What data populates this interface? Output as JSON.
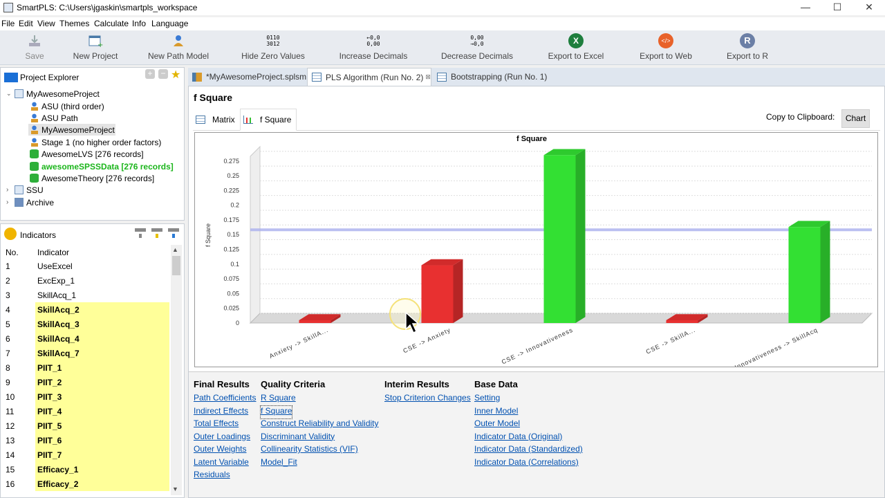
{
  "window": {
    "title": "SmartPLS: C:\\Users\\jgaskin\\smartpls_workspace",
    "minimize": "—",
    "maximize": "☐",
    "close": "✕"
  },
  "menu": [
    "File",
    "Edit",
    "View",
    "Themes",
    "Calculate",
    "Info",
    "Language"
  ],
  "toolbar": {
    "save": "Save",
    "new_project": "New Project",
    "new_path_model": "New Path Model",
    "hide_zero": "Hide Zero Values",
    "hide_zero_icon_top": "0110",
    "hide_zero_icon_bottom": "3012",
    "increase_decimals": "Increase Decimals",
    "increase_icon_top": "←0,0",
    "increase_icon_bottom": "0,00",
    "decrease_decimals": "Decrease Decimals",
    "decrease_icon_top": "0,00",
    "decrease_icon_bottom": "→0,0",
    "export_excel": "Export to Excel",
    "export_web": "Export to Web",
    "export_r": "Export to R",
    "excel_glyph": "X",
    "web_glyph": "</>",
    "r_glyph": "R"
  },
  "project_explorer": {
    "title": "Project Explorer",
    "items": [
      {
        "label": "MyAwesomeProject",
        "type": "project"
      },
      {
        "label": "ASU (third order)",
        "type": "model"
      },
      {
        "label": "ASU Path",
        "type": "model"
      },
      {
        "label": "MyAwesomeProject",
        "type": "model"
      },
      {
        "label": "Stage 1 (no higher order factors)",
        "type": "model"
      },
      {
        "label": "AwesomeLVS [276 records]",
        "type": "data"
      },
      {
        "label": "awesomeSPSSData [276 records]",
        "type": "data"
      },
      {
        "label": "AwesomeTheory [276 records]",
        "type": "data"
      },
      {
        "label": "SSU",
        "type": "project"
      },
      {
        "label": "Archive",
        "type": "archive"
      }
    ]
  },
  "indicators": {
    "title": "Indicators",
    "col_no": "No.",
    "col_indicator": "Indicator",
    "rows": [
      {
        "no": "1",
        "name": "UseExcel"
      },
      {
        "no": "2",
        "name": "ExcExp_1"
      },
      {
        "no": "3",
        "name": "SkillAcq_1"
      },
      {
        "no": "4",
        "name": "SkillAcq_2"
      },
      {
        "no": "5",
        "name": "SkillAcq_3"
      },
      {
        "no": "6",
        "name": "SkillAcq_4"
      },
      {
        "no": "7",
        "name": "SkillAcq_7"
      },
      {
        "no": "8",
        "name": "PIIT_1"
      },
      {
        "no": "9",
        "name": "PIIT_2"
      },
      {
        "no": "10",
        "name": "PIIT_3"
      },
      {
        "no": "11",
        "name": "PIIT_4"
      },
      {
        "no": "12",
        "name": "PIIT_5"
      },
      {
        "no": "13",
        "name": "PIIT_6"
      },
      {
        "no": "14",
        "name": "PIIT_7"
      },
      {
        "no": "15",
        "name": "Efficacy_1"
      },
      {
        "no": "16",
        "name": "Efficacy_2"
      }
    ]
  },
  "tabs": [
    {
      "label": "*MyAwesomeProject.splsm"
    },
    {
      "label": "PLS Algorithm (Run No. 2)",
      "close": "⊠"
    },
    {
      "label": "Bootstrapping (Run No. 1)"
    }
  ],
  "result": {
    "title": "f Square",
    "subtabs": [
      "Matrix",
      "f Square"
    ],
    "copy_label": "Copy to Clipboard:",
    "chart_button": "Chart"
  },
  "chart_data": {
    "type": "bar",
    "title": "f Square",
    "ylabel": "f Square",
    "xlabel": "",
    "categories": [
      "Anxiety -> SkillAcq",
      "CSE -> Anxiety",
      "CSE -> Innovativeness",
      "CSE -> SkillAcq",
      "Innovativeness -> SkillAcq"
    ],
    "category_labels": [
      "Anxiety -> SkillA...",
      "CSE -> Anxiety",
      "CSE -> Innovativeness",
      "CSE -> SkillA...",
      "Innovativeness -> SkillAcq"
    ],
    "values": [
      0.004,
      0.098,
      0.285,
      0.003,
      0.163
    ],
    "colors": [
      "#e83030",
      "#e83030",
      "#33e033",
      "#e83030",
      "#33e033"
    ],
    "reference_line": 0.15,
    "ylim": [
      0,
      0.29
    ],
    "yticks": [
      0,
      0.025,
      0.05,
      0.075,
      0.1,
      0.125,
      0.15,
      0.175,
      0.2,
      0.225,
      0.25,
      0.275
    ],
    "ytick_labels": [
      "0",
      "0.025",
      "0.05",
      "0.075",
      "0.1",
      "0.125",
      "0.15",
      "0.175",
      "0.2",
      "0.225",
      "0.25",
      "0.275"
    ],
    "grid": true,
    "legend": "none"
  },
  "links": {
    "final": {
      "title": "Final Results",
      "items": [
        "Path Coefficients",
        "Indirect Effects",
        "Total Effects",
        "Outer Loadings",
        "Outer Weights",
        "Latent Variable",
        "Residuals"
      ]
    },
    "quality": {
      "title": "Quality Criteria",
      "items": [
        "R Square",
        "f Square",
        "Construct Reliability and Validity",
        "Discriminant Validity",
        "Collinearity Statistics (VIF)",
        "Model_Fit"
      ]
    },
    "interim": {
      "title": "Interim Results",
      "items": [
        "Stop Criterion Changes"
      ]
    },
    "base": {
      "title": "Base Data",
      "items": [
        "Setting",
        "Inner Model",
        "Outer Model",
        "Indicator Data (Original)",
        "Indicator Data (Standardized)",
        "Indicator Data (Correlations)"
      ]
    }
  }
}
